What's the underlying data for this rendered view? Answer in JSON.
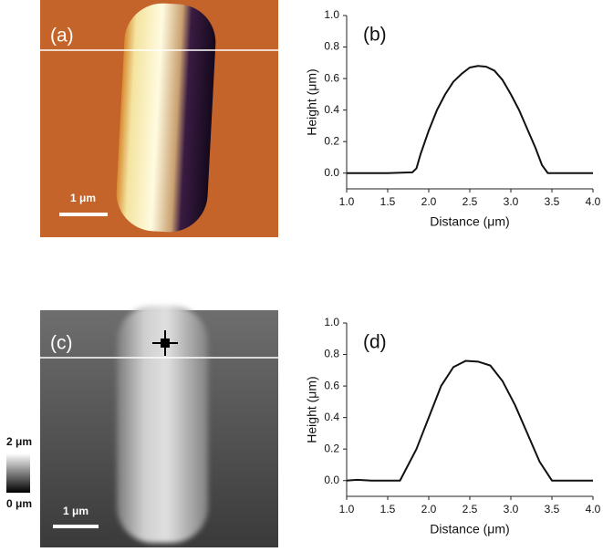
{
  "chart_data": [
    {
      "type": "image",
      "label": "(a)",
      "scale_bar": "1 μm"
    },
    {
      "type": "line",
      "label": "(b)",
      "xlabel": "Distance (μm)",
      "ylabel": "Height (μm)",
      "x": [
        1.0,
        1.5,
        1.8,
        1.85,
        1.9,
        2.0,
        2.1,
        2.2,
        2.3,
        2.4,
        2.5,
        2.6,
        2.7,
        2.8,
        2.9,
        3.0,
        3.1,
        3.2,
        3.3,
        3.38,
        3.45,
        3.6,
        4.0
      ],
      "series": [
        {
          "color": "#111111",
          "values": [
            0.0,
            0.0,
            0.005,
            0.03,
            0.12,
            0.27,
            0.4,
            0.5,
            0.58,
            0.63,
            0.67,
            0.68,
            0.675,
            0.65,
            0.59,
            0.5,
            0.4,
            0.28,
            0.16,
            0.05,
            0.0,
            0.0,
            0.0
          ]
        }
      ],
      "xlim": [
        1.0,
        4.0
      ],
      "ylim": [
        -0.1,
        1.0
      ],
      "xticks": [
        {
          "value": 1,
          "label": "1.0"
        },
        {
          "value": 1.5,
          "label": "1.5"
        },
        {
          "value": 2,
          "label": "2.0"
        },
        {
          "value": 2.5,
          "label": "2.5"
        },
        {
          "value": 3,
          "label": "3.0"
        },
        {
          "value": 3.5,
          "label": "3.5"
        },
        {
          "value": 4,
          "label": "4.0"
        }
      ],
      "yticks": [
        {
          "value": 0,
          "label": "0.0"
        },
        0.2,
        0.4,
        0.6,
        0.8,
        {
          "value": 1,
          "label": "1.0"
        }
      ]
    },
    {
      "type": "image",
      "label": "(c)",
      "scale_bar": "1 μm",
      "colorbar_max": "2 μm",
      "colorbar_min": "0 μm"
    },
    {
      "type": "line",
      "label": "(d)",
      "xlabel": "Distance (μm)",
      "ylabel": "Height (μm)",
      "x": [
        1.0,
        1.13,
        1.3,
        1.65,
        1.85,
        2.0,
        2.15,
        2.3,
        2.45,
        2.6,
        2.75,
        2.9,
        3.05,
        3.2,
        3.35,
        3.5,
        4.0
      ],
      "series": [
        {
          "color": "#111111",
          "values": [
            0.0,
            0.005,
            0.0,
            0.0,
            0.2,
            0.4,
            0.6,
            0.72,
            0.76,
            0.755,
            0.73,
            0.63,
            0.48,
            0.3,
            0.12,
            0.0,
            0.0
          ]
        }
      ],
      "xlim": [
        1.0,
        4.0
      ],
      "ylim": [
        -0.1,
        1.0
      ],
      "xticks": [
        {
          "value": 1,
          "label": "1.0"
        },
        {
          "value": 1.5,
          "label": "1.5"
        },
        {
          "value": 2,
          "label": "2.0"
        },
        {
          "value": 2.5,
          "label": "2.5"
        },
        {
          "value": 3,
          "label": "3.0"
        },
        {
          "value": 3.5,
          "label": "3.5"
        },
        {
          "value": 4,
          "label": "4.0"
        }
      ],
      "yticks": [
        {
          "value": 0,
          "label": "0.0"
        },
        0.2,
        0.4,
        0.6,
        0.8,
        {
          "value": 1,
          "label": "1.0"
        }
      ]
    }
  ]
}
